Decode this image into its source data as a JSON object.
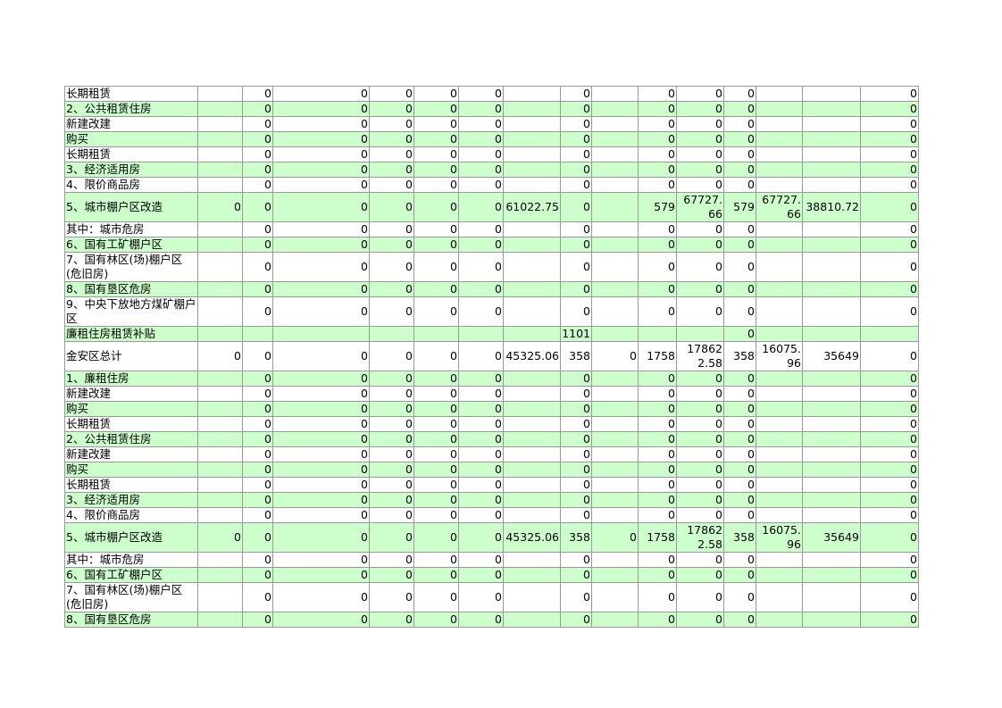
{
  "rows": [
    [
      "长期租赁",
      "",
      "0",
      "0",
      "0",
      "0",
      "0",
      "",
      "0",
      "",
      "0",
      "0",
      "0",
      "",
      "",
      "0"
    ],
    [
      "2、公共租赁住房",
      "",
      "0",
      "0",
      "0",
      "0",
      "0",
      "",
      "0",
      "",
      "0",
      "0",
      "0",
      "",
      "",
      "0"
    ],
    [
      "新建改建",
      "",
      "0",
      "0",
      "0",
      "0",
      "0",
      "",
      "0",
      "",
      "0",
      "0",
      "0",
      "",
      "",
      "0"
    ],
    [
      "购买",
      "",
      "0",
      "0",
      "0",
      "0",
      "0",
      "",
      "0",
      "",
      "0",
      "0",
      "0",
      "",
      "",
      "0"
    ],
    [
      "长期租赁",
      "",
      "0",
      "0",
      "0",
      "0",
      "0",
      "",
      "0",
      "",
      "0",
      "0",
      "0",
      "",
      "",
      "0"
    ],
    [
      "3、经济适用房",
      "",
      "0",
      "0",
      "0",
      "0",
      "0",
      "",
      "0",
      "",
      "0",
      "0",
      "0",
      "",
      "",
      "0"
    ],
    [
      "4、限价商品房",
      "",
      "0",
      "0",
      "0",
      "0",
      "0",
      "",
      "0",
      "",
      "0",
      "0",
      "0",
      "",
      "",
      "0"
    ],
    [
      "5、城市棚户区改造",
      "0",
      "0",
      "0",
      "0",
      "0",
      "0",
      "61022.75",
      "0",
      "",
      "579",
      "67727.66",
      "579",
      "67727.66",
      "38810.72",
      "0"
    ],
    [
      "其中：城市危房",
      "",
      "0",
      "0",
      "0",
      "0",
      "0",
      "",
      "0",
      "",
      "0",
      "0",
      "0",
      "",
      "",
      "0"
    ],
    [
      "6、国有工矿棚户区",
      "",
      "0",
      "0",
      "0",
      "0",
      "0",
      "",
      "0",
      "",
      "0",
      "0",
      "0",
      "",
      "",
      "0"
    ],
    [
      "7、国有林区(场)棚户区(危旧房)",
      "",
      "0",
      "0",
      "0",
      "0",
      "0",
      "",
      "0",
      "",
      "0",
      "0",
      "0",
      "",
      "",
      "0"
    ],
    [
      "8、国有垦区危房",
      "",
      "0",
      "0",
      "0",
      "0",
      "0",
      "",
      "0",
      "",
      "0",
      "0",
      "0",
      "",
      "",
      "0"
    ],
    [
      "9、中央下放地方煤矿棚户区",
      "",
      "0",
      "0",
      "0",
      "0",
      "0",
      "",
      "0",
      "",
      "0",
      "0",
      "0",
      "",
      "",
      "0"
    ],
    [
      "廉租住房租赁补贴",
      "",
      "",
      "",
      "",
      "",
      "",
      "",
      "1101",
      "",
      "",
      "",
      "0",
      "",
      "",
      ""
    ],
    [
      "金安区总计",
      "0",
      "0",
      "0",
      "0",
      "0",
      "0",
      "45325.06",
      "358",
      "0",
      "1758",
      "178622.58",
      "358",
      "16075.96",
      "35649",
      "0"
    ],
    [
      "1、廉租住房",
      "",
      "0",
      "0",
      "0",
      "0",
      "0",
      "",
      "0",
      "",
      "0",
      "0",
      "0",
      "",
      "",
      "0"
    ],
    [
      "新建改建",
      "",
      "0",
      "0",
      "0",
      "0",
      "0",
      "",
      "0",
      "",
      "0",
      "0",
      "0",
      "",
      "",
      "0"
    ],
    [
      "购买",
      "",
      "0",
      "0",
      "0",
      "0",
      "0",
      "",
      "0",
      "",
      "0",
      "0",
      "0",
      "",
      "",
      "0"
    ],
    [
      "长期租赁",
      "",
      "0",
      "0",
      "0",
      "0",
      "0",
      "",
      "0",
      "",
      "0",
      "0",
      "0",
      "",
      "",
      "0"
    ],
    [
      "2、公共租赁住房",
      "",
      "0",
      "0",
      "0",
      "0",
      "0",
      "",
      "0",
      "",
      "0",
      "0",
      "0",
      "",
      "",
      "0"
    ],
    [
      "新建改建",
      "",
      "0",
      "0",
      "0",
      "0",
      "0",
      "",
      "0",
      "",
      "0",
      "0",
      "0",
      "",
      "",
      "0"
    ],
    [
      "购买",
      "",
      "0",
      "0",
      "0",
      "0",
      "0",
      "",
      "0",
      "",
      "0",
      "0",
      "0",
      "",
      "",
      "0"
    ],
    [
      "长期租赁",
      "",
      "0",
      "0",
      "0",
      "0",
      "0",
      "",
      "0",
      "",
      "0",
      "0",
      "0",
      "",
      "",
      "0"
    ],
    [
      "3、经济适用房",
      "",
      "0",
      "0",
      "0",
      "0",
      "0",
      "",
      "0",
      "",
      "0",
      "0",
      "0",
      "",
      "",
      "0"
    ],
    [
      "4、限价商品房",
      "",
      "0",
      "0",
      "0",
      "0",
      "0",
      "",
      "0",
      "",
      "0",
      "0",
      "0",
      "",
      "",
      "0"
    ],
    [
      "5、城市棚户区改造",
      "0",
      "0",
      "0",
      "0",
      "0",
      "0",
      "45325.06",
      "358",
      "0",
      "1758",
      "178622.58",
      "358",
      "16075.96",
      "35649",
      "0"
    ],
    [
      "其中：城市危房",
      "",
      "0",
      "0",
      "0",
      "0",
      "0",
      "",
      "0",
      "",
      "0",
      "0",
      "0",
      "",
      "",
      "0"
    ],
    [
      "6、国有工矿棚户区",
      "",
      "0",
      "0",
      "0",
      "0",
      "0",
      "",
      "0",
      "",
      "0",
      "0",
      "0",
      "",
      "",
      "0"
    ],
    [
      "7、国有林区(场)棚户区(危旧房)",
      "",
      "0",
      "0",
      "0",
      "0",
      "0",
      "",
      "0",
      "",
      "0",
      "0",
      "0",
      "",
      "",
      "0"
    ],
    [
      "8、国有垦区危房",
      "",
      "0",
      "0",
      "0",
      "0",
      "0",
      "",
      "0",
      "",
      "0",
      "0",
      "0",
      "",
      "",
      "0"
    ]
  ],
  "colors": {
    "band": "#ccffcc",
    "grid": "#999999"
  }
}
